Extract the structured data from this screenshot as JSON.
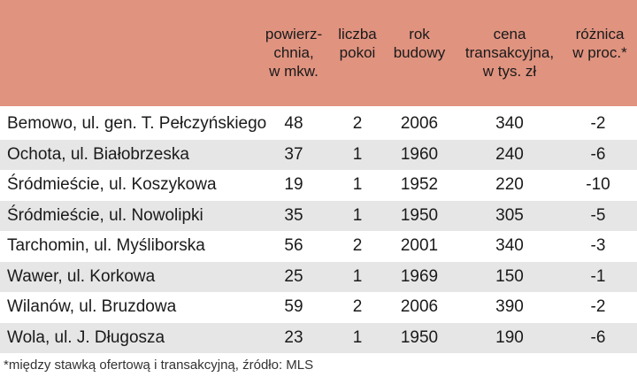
{
  "table": {
    "headers": {
      "area": "powierz-\nchnia,\nw mkw.",
      "rooms": "liczba\npokoi",
      "year": "rok\nbudowy",
      "price": "cena\ntransakcyjna,\nw tys. zł",
      "diff": "różnica\nw proc.*"
    },
    "rows": [
      {
        "location": "Bemowo, ul. gen. T. Pełczyńskiego",
        "area": "48",
        "rooms": "2",
        "year": "2006",
        "price": "340",
        "diff": "-2"
      },
      {
        "location": "Ochota, ul. Białobrzeska",
        "area": "37",
        "rooms": "1",
        "year": "1960",
        "price": "240",
        "diff": "-6"
      },
      {
        "location": "Śródmieście, ul. Koszykowa",
        "area": "19",
        "rooms": "1",
        "year": "1952",
        "price": "220",
        "diff": "-10"
      },
      {
        "location": "Śródmieście, ul. Nowolipki",
        "area": "35",
        "rooms": "1",
        "year": "1950",
        "price": "305",
        "diff": "-5"
      },
      {
        "location": "Tarchomin, ul. Myśliborska",
        "area": "56",
        "rooms": "2",
        "year": "2001",
        "price": "340",
        "diff": "-3"
      },
      {
        "location": "Wawer, ul. Korkowa",
        "area": "25",
        "rooms": "1",
        "year": "1969",
        "price": "150",
        "diff": "-1"
      },
      {
        "location": "Wilanów, ul. Bruzdowa",
        "area": "59",
        "rooms": "2",
        "year": "2006",
        "price": "390",
        "diff": "-2"
      },
      {
        "location": "Wola, ul. J. Długosza",
        "area": "23",
        "rooms": "1",
        "year": "1950",
        "price": "190",
        "diff": "-6"
      }
    ]
  },
  "footnote": "*między stawką ofertową i transakcyjną, źródło: MLS",
  "colors": {
    "header_bg": "#e0937f",
    "row_shade": "#e6e6e6"
  }
}
